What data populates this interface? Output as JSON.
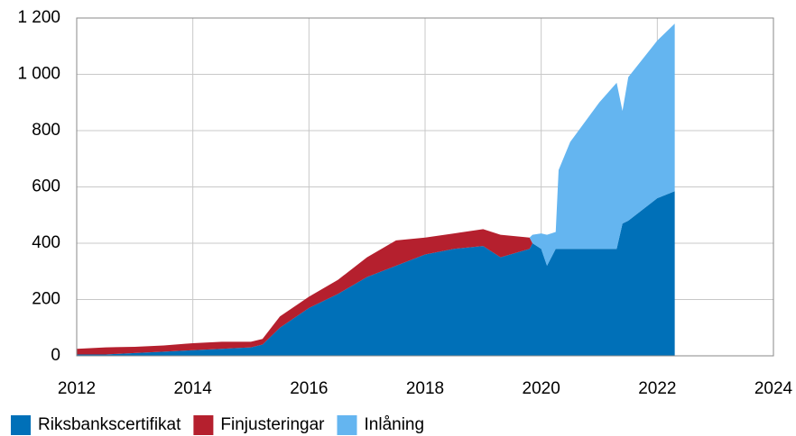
{
  "chart_data": {
    "type": "stacked_area",
    "x": [
      2012.0,
      2012.5,
      2013.0,
      2013.5,
      2014.0,
      2014.5,
      2015.0,
      2015.2,
      2015.5,
      2016.0,
      2016.5,
      2017.0,
      2017.5,
      2018.0,
      2018.5,
      2019.0,
      2019.3,
      2019.8,
      2019.85,
      2020.0,
      2020.1,
      2020.25,
      2020.3,
      2020.5,
      2021.0,
      2021.3,
      2021.4,
      2021.5,
      2022.0,
      2022.3
    ],
    "series": [
      {
        "name": "Riksbankscertifikat",
        "color": "#0070b8",
        "values": [
          5,
          5,
          10,
          15,
          20,
          25,
          30,
          40,
          100,
          170,
          220,
          280,
          320,
          360,
          380,
          390,
          350,
          380,
          400,
          380,
          320,
          380,
          380,
          380,
          380,
          380,
          470,
          480,
          560,
          585
        ]
      },
      {
        "name": "Finjusteringar",
        "color": "#b5202e",
        "values": [
          20,
          25,
          22,
          22,
          25,
          25,
          20,
          20,
          40,
          40,
          50,
          70,
          90,
          60,
          55,
          60,
          80,
          40,
          0,
          0,
          0,
          0,
          0,
          0,
          0,
          0,
          0,
          0,
          0,
          0
        ]
      },
      {
        "name": "Inlåning",
        "color": "#64b5f0",
        "values": [
          0,
          0,
          0,
          0,
          0,
          0,
          0,
          0,
          0,
          0,
          0,
          0,
          0,
          0,
          0,
          0,
          0,
          0,
          30,
          55,
          110,
          60,
          280,
          380,
          520,
          590,
          400,
          510,
          560,
          595
        ]
      }
    ],
    "xlim": [
      2012,
      2024
    ],
    "xticks": [
      2012,
      2014,
      2016,
      2018,
      2020,
      2022,
      2024
    ],
    "ylim": [
      0,
      1200
    ],
    "yticks": [
      0,
      200,
      400,
      600,
      800,
      {
        "value": 1000,
        "label": "1 000"
      },
      {
        "value": 1200,
        "label": "1 200"
      }
    ],
    "grid": true,
    "legend": "bottom"
  }
}
